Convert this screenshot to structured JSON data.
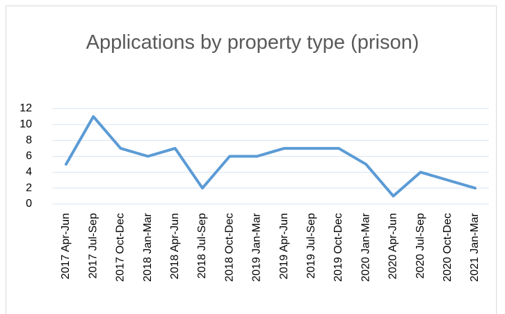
{
  "chart_data": {
    "type": "line",
    "title": "Applications by property type (prison)",
    "categories": [
      "2017 Apr-Jun",
      "2017 Jul-Sep",
      "2017 Oct-Dec",
      "2018 Jan-Mar",
      "2018 Apr-Jun",
      "2018 Jul-Sep",
      "2018 Oct-Dec",
      "2019 Jan-Mar",
      "2019 Apr-Jun",
      "2019 Jul-Sep",
      "2019 Oct-Dec",
      "2020 Jan-Mar",
      "2020 Apr-Jun",
      "2020 Jul-Sep",
      "2020 Oct-Dec",
      "2021 Jan-Mar"
    ],
    "series": [
      {
        "name": "prison",
        "color": "#5b9bd5",
        "values": [
          5,
          11,
          7,
          6,
          7,
          2,
          6,
          6,
          7,
          7,
          7,
          5,
          1,
          4,
          3,
          2
        ]
      }
    ],
    "ylim": [
      0,
      12
    ],
    "yticks": [
      0,
      2,
      4,
      6,
      8,
      10,
      12
    ],
    "grid": true
  }
}
